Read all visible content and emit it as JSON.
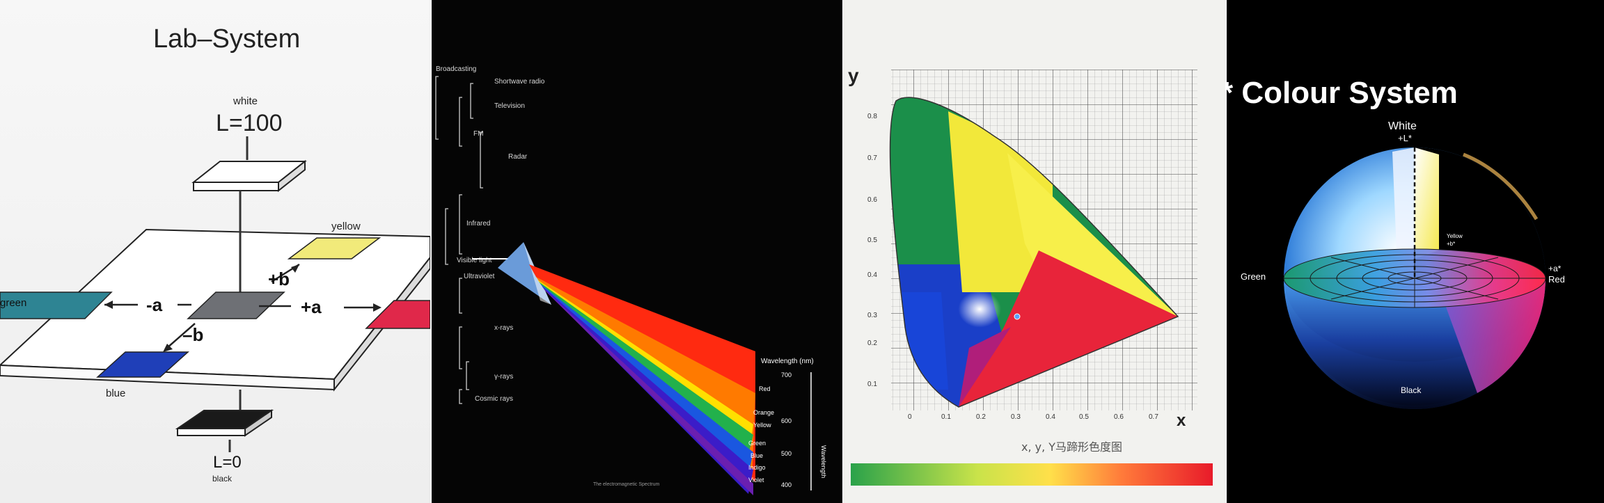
{
  "lab": {
    "title": "Lab–System",
    "white_label": "white",
    "l_top": "L=100",
    "yellow": "yellow",
    "green": "green",
    "blue": "blue",
    "plus_b": "+b",
    "minus_b": "–b",
    "minus_a": "-a",
    "plus_a": "+a",
    "l_bottom": "L=0",
    "black_label": "black",
    "colors": {
      "yellow": "#f1ea7a",
      "green": "#2e8493",
      "red": "#e0284a",
      "blue": "#1f3fb8",
      "gray": "#6e7075",
      "black": "#1a1a1a"
    }
  },
  "spectrum": {
    "bands": [
      "Broadcasting",
      "Shortwave radio",
      "Television",
      "FM",
      "Radar",
      "Infrared",
      "Visible light",
      "Ultraviolet",
      "x-rays",
      "γ-rays",
      "Cosmic rays"
    ],
    "wavelength_title": "Wavelength (nm)",
    "colors": [
      {
        "name": "Red",
        "hex": "#ff2a10"
      },
      {
        "name": "Orange",
        "hex": "#ff7a00"
      },
      {
        "name": "Yellow",
        "hex": "#ffe000"
      },
      {
        "name": "Green",
        "hex": "#22b14c"
      },
      {
        "name": "Blue",
        "hex": "#1a57e0"
      },
      {
        "name": "Indigo",
        "hex": "#3b1cc8"
      },
      {
        "name": "Violet",
        "hex": "#6a1fb0"
      }
    ],
    "ticks": [
      "700",
      "600",
      "500",
      "400"
    ],
    "axis_word": "Wavelength",
    "caption": "The electromagnetic Spectrum"
  },
  "chromaticity": {
    "x_axis": "x",
    "y_axis": "y",
    "x_ticks": [
      "0",
      "0.1",
      "0.2",
      "0.3",
      "0.4",
      "0.5",
      "0.6",
      "0.7"
    ],
    "y_ticks": [
      "0.1",
      "0.2",
      "0.3",
      "0.4",
      "0.5",
      "0.6",
      "0.7",
      "0.8"
    ],
    "caption": "x, y, Y马蹄形色度图"
  },
  "cielab_sphere": {
    "title": "* Colour System",
    "white": "White",
    "plus_l": "+L*",
    "yellow": "Yellow",
    "plus_b": "+b*",
    "plus_a": "+a*",
    "red": "Red",
    "green": "Green",
    "black": "Black"
  }
}
